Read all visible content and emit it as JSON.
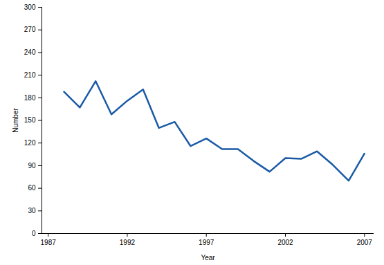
{
  "chart_data": {
    "type": "line",
    "x": [
      1988,
      1989,
      1990,
      1991,
      1992,
      1993,
      1994,
      1995,
      1996,
      1997,
      1998,
      1999,
      2000,
      2001,
      2002,
      2003,
      2004,
      2005,
      2006,
      2007
    ],
    "values": [
      188,
      167,
      202,
      158,
      176,
      191,
      140,
      148,
      116,
      126,
      112,
      112,
      96,
      82,
      100,
      99,
      109,
      91,
      70,
      106
    ],
    "color": "#1a5aa6",
    "xlabel": "Year",
    "ylabel": "Number",
    "xlim": [
      1986.6,
      2007.6
    ],
    "xticks": [
      1987,
      1992,
      1997,
      2002,
      2007
    ],
    "ylim": [
      0,
      300
    ],
    "yticks": [
      0,
      30,
      60,
      90,
      120,
      150,
      180,
      210,
      240,
      270,
      300
    ],
    "grid": false
  }
}
